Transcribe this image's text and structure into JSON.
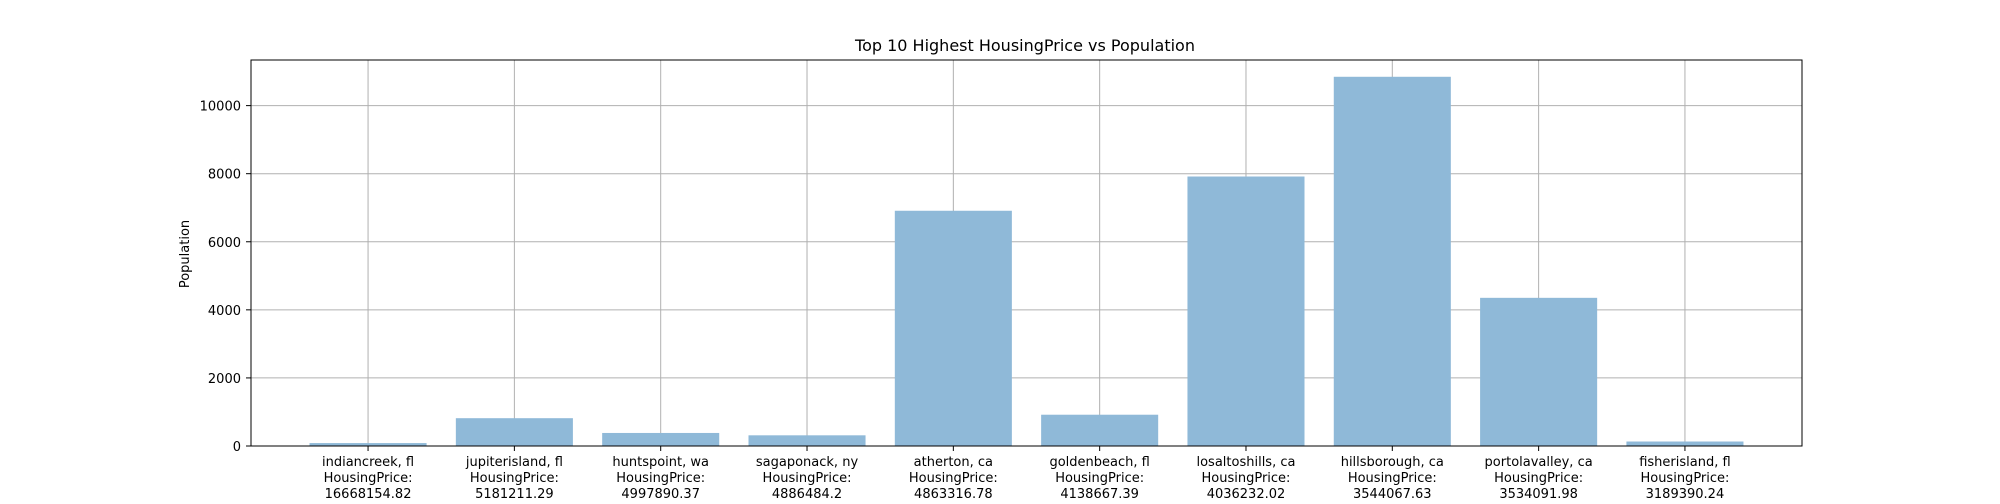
{
  "chart_data": {
    "type": "bar",
    "title": "Top 10 Highest HousingPrice vs Population",
    "xlabel": "",
    "ylabel": "Population",
    "ylim": [
      0,
      11340
    ],
    "yticks": [
      0,
      2000,
      4000,
      6000,
      8000,
      10000
    ],
    "grid": true,
    "legend": "none",
    "bar_color": "#8fb9d8",
    "categories": [
      [
        "indiancreek, fl",
        "HousingPrice:",
        "16668154.82"
      ],
      [
        "jupiterisland, fl",
        "HousingPrice:",
        "5181211.29"
      ],
      [
        "huntspoint, wa",
        "HousingPrice:",
        "4997890.37"
      ],
      [
        "sagaponack, ny",
        "HousingPrice:",
        "4886484.2"
      ],
      [
        "atherton, ca",
        "HousingPrice:",
        "4863316.78"
      ],
      [
        "goldenbeach, fl",
        "HousingPrice:",
        "4138667.39"
      ],
      [
        "losaltoshills, ca",
        "HousingPrice:",
        "4036232.02"
      ],
      [
        "hillsborough, ca",
        "HousingPrice:",
        "3544067.63"
      ],
      [
        "portolavalley, ca",
        "HousingPrice:",
        "3534091.98"
      ],
      [
        "fisherisland, fl",
        "HousingPrice:",
        "3189390.24"
      ]
    ],
    "values": [
      86,
      817,
      383,
      314,
      6911,
      919,
      7917,
      10847,
      4353,
      132
    ]
  }
}
